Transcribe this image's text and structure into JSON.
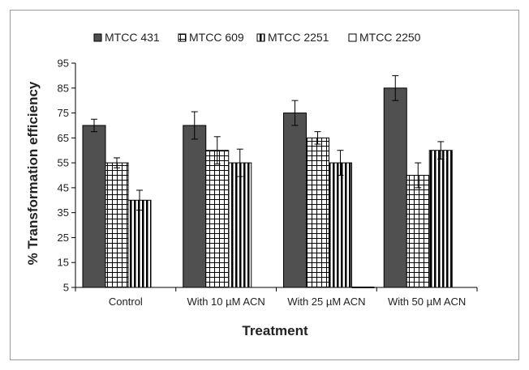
{
  "chart_data": {
    "type": "bar",
    "title": "",
    "xlabel": "Treatment",
    "ylabel": "% Transformation efficiency",
    "ylim": [
      5,
      95
    ],
    "yticks": [
      5,
      15,
      25,
      35,
      45,
      55,
      65,
      75,
      85,
      95
    ],
    "grid": false,
    "legend_position": "top",
    "categories": [
      "Control",
      "With 10 µM ACN",
      "With 25 µM ACN",
      "With 50 µM ACN"
    ],
    "series": [
      {
        "name": "MTCC 431",
        "pattern": "solid",
        "color": "#505050",
        "values": [
          70,
          70,
          75,
          85
        ],
        "errors": [
          2.5,
          5.5,
          5,
          5
        ]
      },
      {
        "name": "MTCC 609",
        "pattern": "grid",
        "color": "#000000",
        "values": [
          55,
          60,
          65,
          50
        ],
        "errors": [
          2,
          5.5,
          2.5,
          5
        ]
      },
      {
        "name": "MTCC 2251",
        "pattern": "vertical",
        "color": "#000000",
        "values": [
          40,
          55,
          55,
          60
        ],
        "errors": [
          4,
          5.5,
          5,
          3.5
        ]
      },
      {
        "name": "MTCC 2250",
        "pattern": "none",
        "color": "#000000",
        "values": [
          null,
          null,
          5,
          null
        ],
        "errors": [
          null,
          null,
          null,
          null
        ]
      }
    ]
  }
}
